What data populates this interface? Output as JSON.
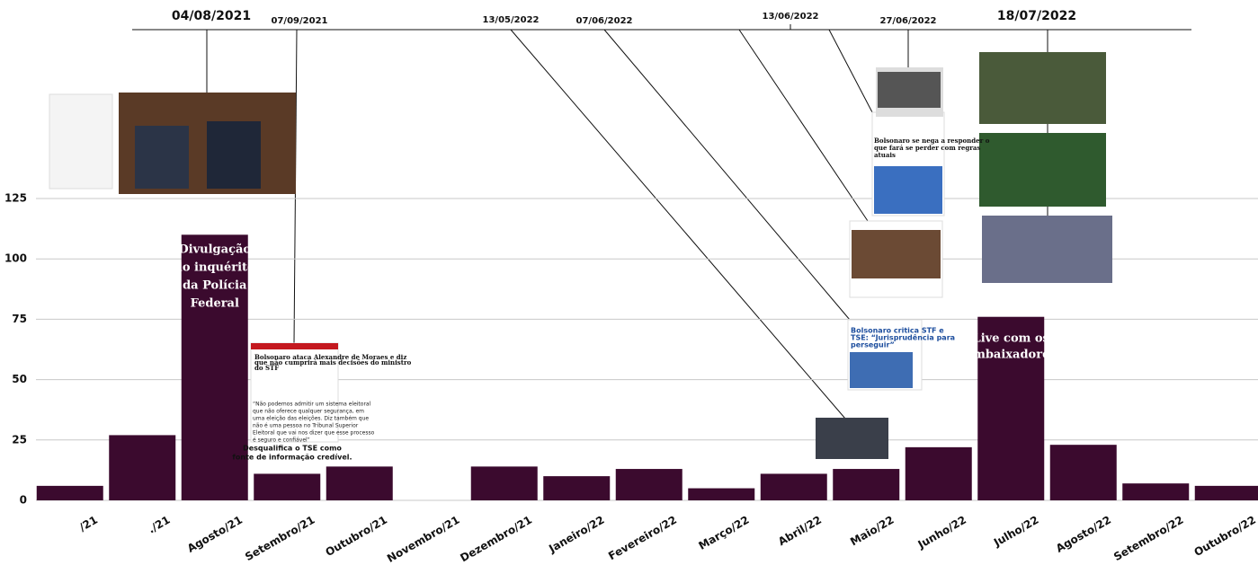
{
  "chart_data": {
    "type": "bar",
    "categories": [
      "/21",
      "./21",
      "Agosto/21",
      "Setembro/21",
      "Outubro/21",
      "Novembro/21",
      "Dezembro/21",
      "Janeiro/22",
      "Fevereiro/22",
      "Março/22",
      "Abril/22",
      "Maio/22",
      "Junho/22",
      "Julho/22",
      "Agosto/22",
      "Setembro/22",
      "Outubro/22"
    ],
    "values": [
      6,
      27,
      110,
      11,
      14,
      0,
      14,
      10,
      13,
      5,
      11,
      13,
      22,
      76,
      23,
      7,
      6
    ],
    "color": "#3b0a2e",
    "ylim": [
      0,
      150
    ],
    "yticks": [
      0,
      25,
      50,
      75,
      100,
      125
    ],
    "grid": true,
    "dates": [
      "04/08/2021",
      "07/09/2021",
      "13/05/2022",
      "07/06/2022",
      "13/06/2022",
      "27/06/2022",
      "18/07/2022"
    ],
    "bar_notes": [
      [
        "Divulgação",
        "do inquérito",
        "da Polícia",
        "Federal"
      ],
      [
        "Live com os",
        "embaixadores"
      ]
    ],
    "caption": [
      "Desqualifica o TSE como",
      "fonte de informação credível."
    ],
    "clippings": {
      "estadao": [
        "Bolsonaro ataca Alexandre de Moraes e diz",
        "que não cumprirá mais decisões do ministro",
        "do STF"
      ],
      "quote": [
        "“Não podemos admitir um sistema eleitoral",
        "que não oferece qualquer segurança, em",
        "uma eleição das eleições. Diz também que",
        "não é uma pessoa no Tribunal Superior",
        "Eleitoral que vai nos dizer que esse processo",
        "é seguro e confiável”"
      ],
      "poder": [
        "Bolsonaro critica STF e",
        "TSE: “Jurisprudência para",
        "perseguir”"
      ],
      "folha": [
        "Bolsonaro se nega a responder o",
        "que fará se perder com regras",
        "atuais"
      ]
    }
  }
}
